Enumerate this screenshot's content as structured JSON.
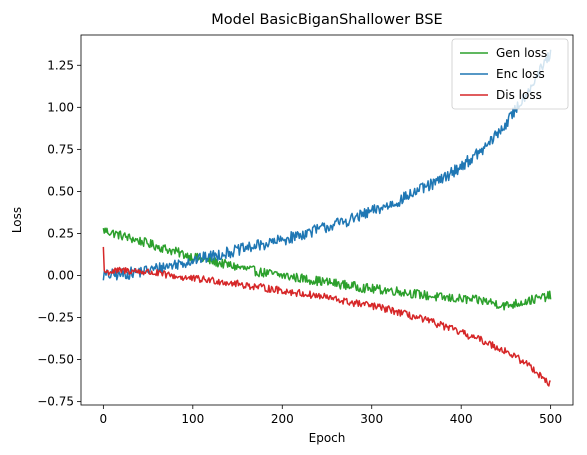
{
  "chart_data": {
    "type": "line",
    "title": "Model BasicBiganShallower BSE",
    "xlabel": "Epoch",
    "ylabel": "Loss",
    "xlim": [
      -25,
      525
    ],
    "ylim": [
      -0.77,
      1.43
    ],
    "xticks": [
      0,
      100,
      200,
      300,
      400,
      500
    ],
    "xtick_labels": [
      "0",
      "100",
      "200",
      "300",
      "400",
      "500"
    ],
    "yticks": [
      -0.75,
      -0.5,
      -0.25,
      0.0,
      0.25,
      0.5,
      0.75,
      1.0,
      1.25
    ],
    "ytick_labels": [
      "−0.75",
      "−0.50",
      "−0.25",
      "0.00",
      "0.25",
      "0.50",
      "0.75",
      "1.00",
      "1.25"
    ],
    "grid": false,
    "legend_position": "top-right",
    "series": [
      {
        "name": "Gen loss",
        "color": "#2ca02c",
        "x": [
          0,
          25,
          50,
          75,
          100,
          125,
          150,
          175,
          200,
          225,
          250,
          275,
          300,
          325,
          350,
          375,
          400,
          425,
          450,
          475,
          500
        ],
        "y": [
          0.27,
          0.23,
          0.19,
          0.15,
          0.11,
          0.08,
          0.05,
          0.02,
          0.0,
          -0.02,
          -0.04,
          -0.06,
          -0.08,
          -0.09,
          -0.11,
          -0.13,
          -0.14,
          -0.15,
          -0.18,
          -0.15,
          -0.12
        ]
      },
      {
        "name": "Enc loss",
        "color": "#1f77b4",
        "x": [
          0,
          25,
          50,
          75,
          100,
          125,
          150,
          175,
          200,
          225,
          250,
          275,
          300,
          325,
          350,
          375,
          400,
          425,
          450,
          475,
          500
        ],
        "y": [
          0.0,
          0.01,
          0.03,
          0.06,
          0.09,
          0.12,
          0.15,
          0.18,
          0.21,
          0.25,
          0.29,
          0.33,
          0.38,
          0.43,
          0.5,
          0.56,
          0.65,
          0.75,
          0.9,
          1.1,
          1.32
        ]
      },
      {
        "name": "Dis loss",
        "color": "#d62728",
        "x": [
          0,
          1,
          2,
          25,
          50,
          75,
          100,
          125,
          150,
          175,
          200,
          225,
          250,
          275,
          300,
          325,
          350,
          375,
          400,
          425,
          450,
          475,
          490,
          500
        ],
        "y": [
          0.17,
          0.03,
          0.02,
          0.03,
          0.02,
          0.0,
          -0.02,
          -0.03,
          -0.05,
          -0.07,
          -0.09,
          -0.11,
          -0.13,
          -0.16,
          -0.18,
          -0.21,
          -0.25,
          -0.29,
          -0.34,
          -0.39,
          -0.45,
          -0.53,
          -0.6,
          -0.65
        ]
      }
    ]
  }
}
